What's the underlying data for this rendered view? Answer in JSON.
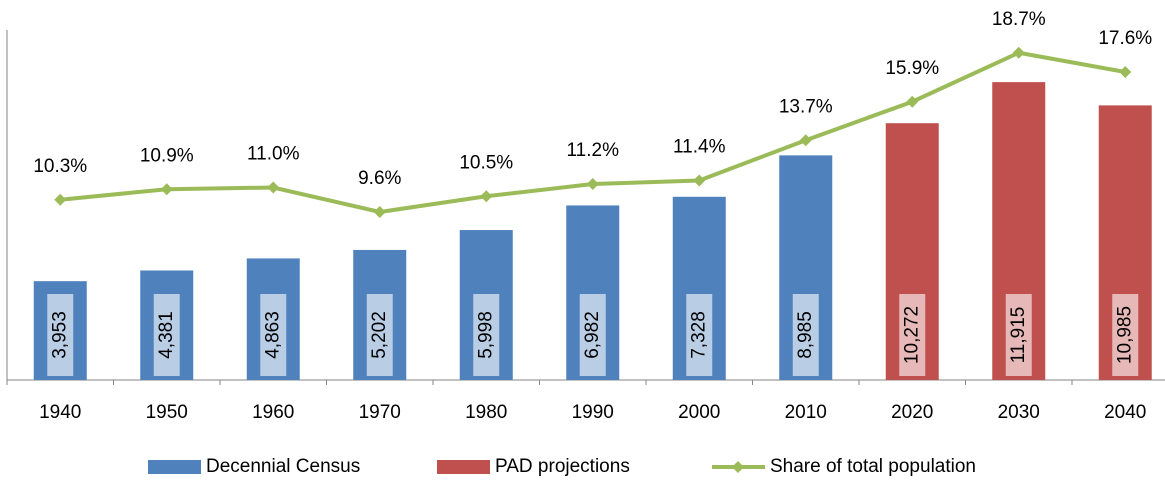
{
  "chart_data": {
    "type": "bar-line",
    "categories": [
      "1940",
      "1950",
      "1960",
      "1970",
      "1980",
      "1990",
      "2000",
      "2010",
      "2020",
      "2030",
      "2040"
    ],
    "series": [
      {
        "name": "Decennial Census",
        "type": "bar",
        "color": "#4f81bd",
        "label_box_color": "#b9cde5",
        "values": [
          3953,
          4381,
          4863,
          5202,
          5998,
          6982,
          7328,
          8985,
          null,
          null,
          null
        ],
        "value_labels": [
          "3,953",
          "4,381",
          "4,863",
          "5,202",
          "5,998",
          "6,982",
          "7,328",
          "8,985",
          null,
          null,
          null
        ]
      },
      {
        "name": "PAD projections",
        "type": "bar",
        "color": "#c0504d",
        "label_box_color": "#e6b9b8",
        "values": [
          null,
          null,
          null,
          null,
          null,
          null,
          null,
          null,
          10272,
          11915,
          10985
        ],
        "value_labels": [
          null,
          null,
          null,
          null,
          null,
          null,
          null,
          null,
          "10,272",
          "11,915",
          "10,985"
        ]
      },
      {
        "name": "Share of total population",
        "type": "line",
        "axis": "y2",
        "color": "#9bbb59",
        "values": [
          10.3,
          10.9,
          11.0,
          9.6,
          10.5,
          11.2,
          11.4,
          13.7,
          15.9,
          18.7,
          17.6
        ],
        "value_labels": [
          "10.3%",
          "10.9%",
          "11.0%",
          "9.6%",
          "10.5%",
          "11.2%",
          "11.4%",
          "13.7%",
          "15.9%",
          "18.7%",
          "17.6%"
        ]
      }
    ],
    "ylim": [
      0,
      14000
    ],
    "y2lim": [
      0,
      20
    ],
    "legend": "bottom"
  }
}
